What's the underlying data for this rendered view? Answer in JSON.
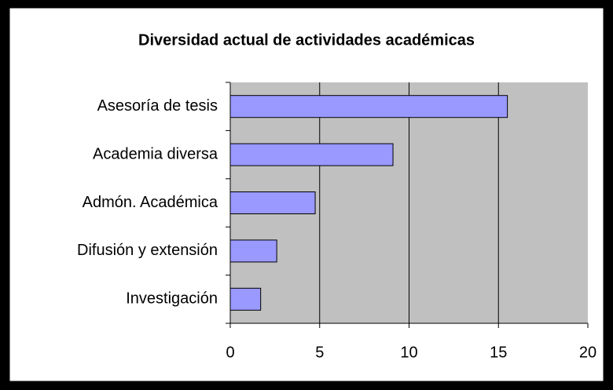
{
  "chart_data": {
    "type": "bar",
    "orientation": "horizontal",
    "title": "Diversidad actual de actividades académicas",
    "categories": [
      "Asesoría de tesis",
      "Academia diversa",
      "Admón. Académica",
      "Difusión y extensión",
      "Investigación"
    ],
    "values": [
      15.5,
      9.1,
      4.75,
      2.6,
      1.7
    ],
    "color": "#9999ff",
    "xlim": [
      0,
      20
    ],
    "xticks": [
      0,
      5,
      10,
      15,
      20
    ],
    "grid": true
  }
}
